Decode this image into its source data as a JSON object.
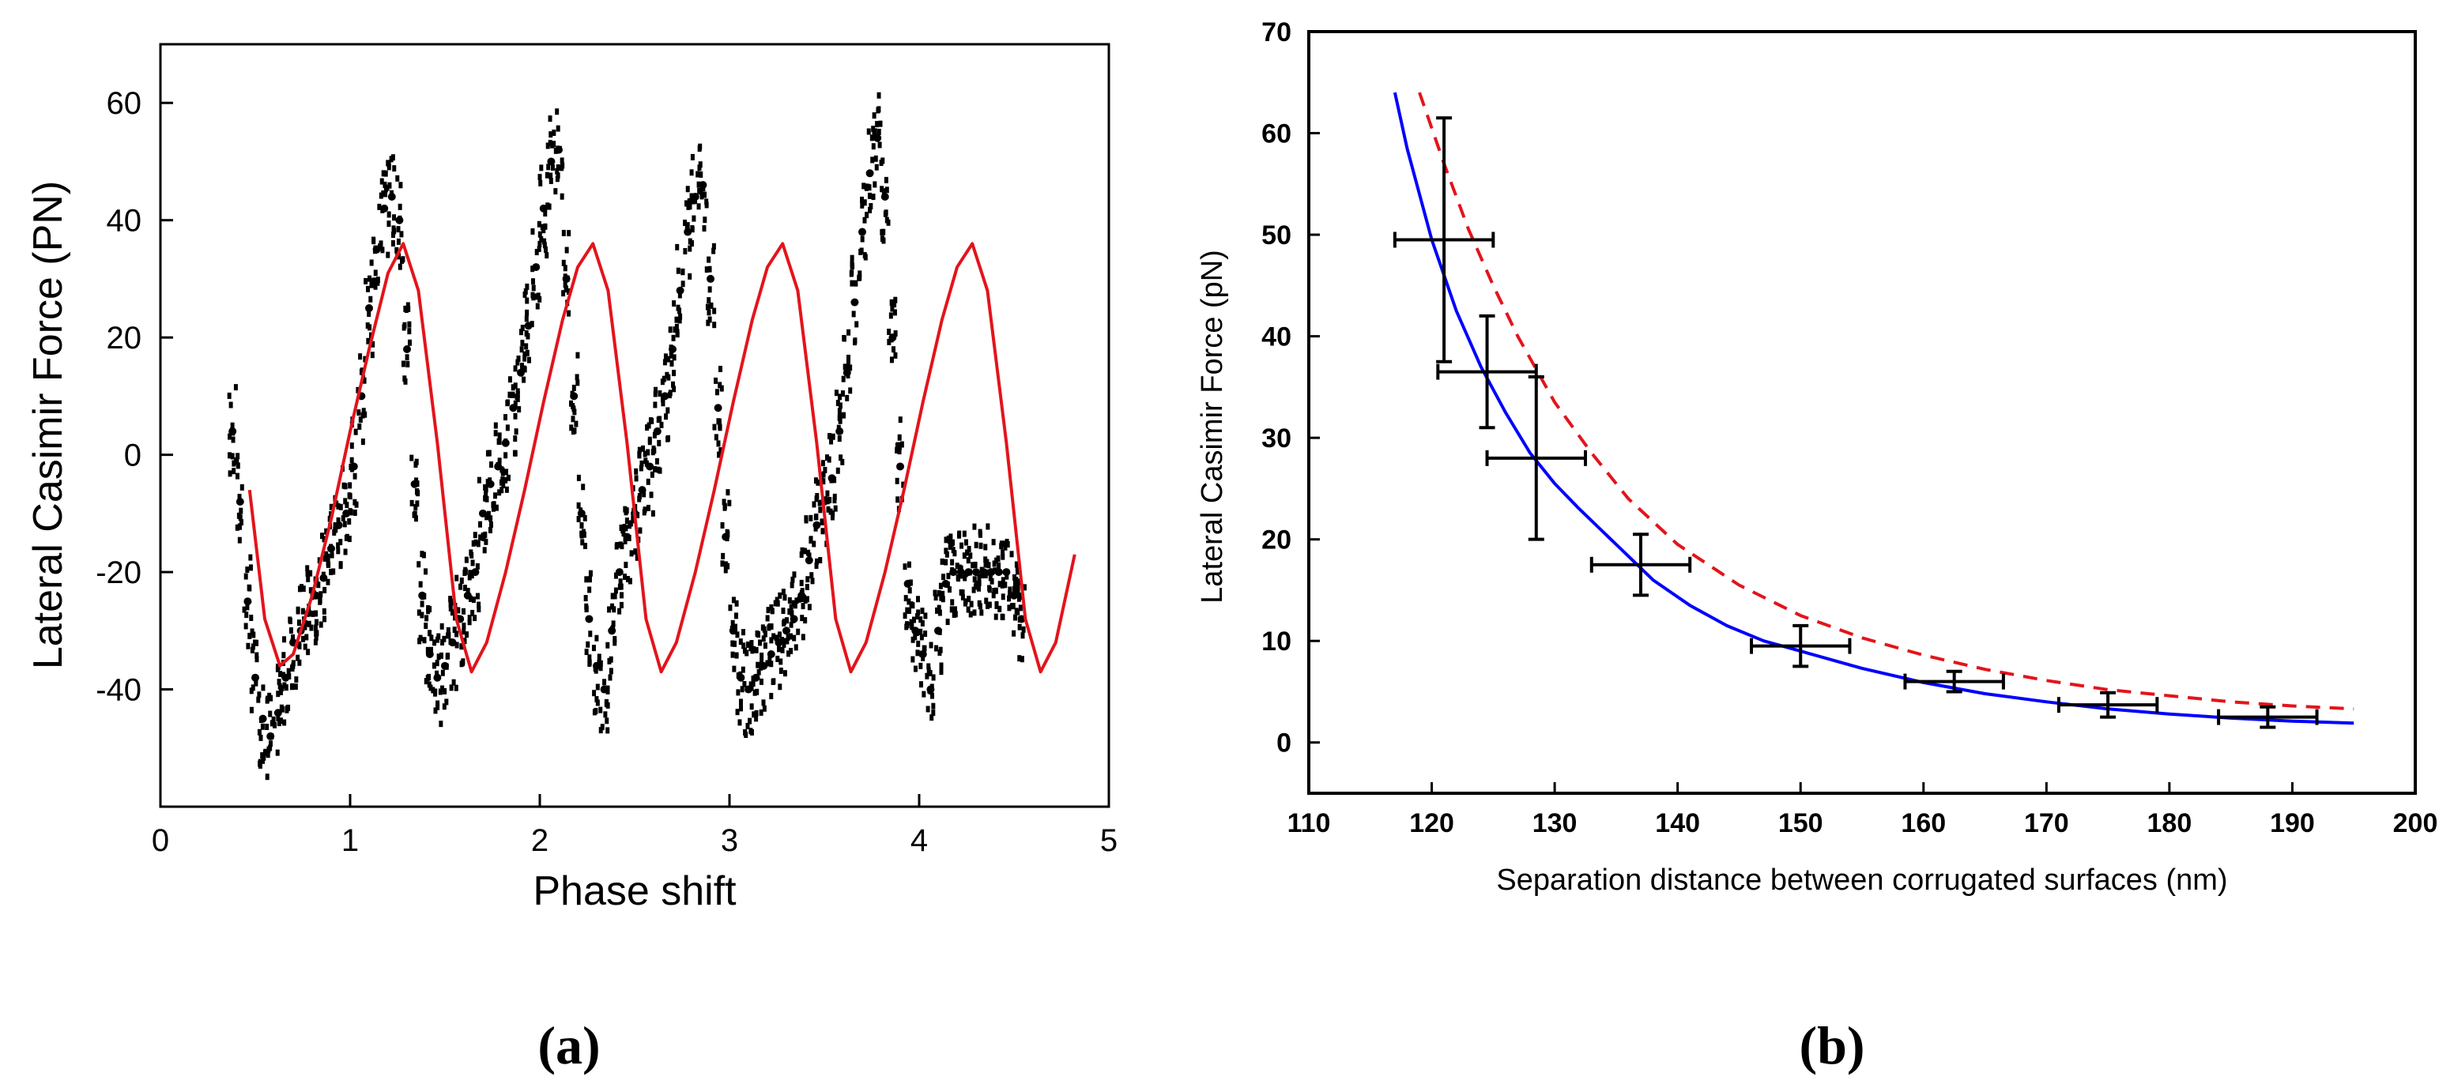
{
  "chart_data": [
    {
      "panel_label": "(a)",
      "type": "scatter",
      "xlabel": "Phase shift",
      "ylabel": "Lateral Casimir Force (PN)",
      "xlim": [
        0,
        5
      ],
      "ylim": [
        -60,
        70
      ],
      "xticks": [
        0,
        1,
        2,
        3,
        4,
        5
      ],
      "yticks": [
        -40,
        -20,
        0,
        20,
        40,
        60
      ],
      "legend": "none",
      "grid": false,
      "series": [
        {
          "kind": "scatter",
          "color": "#000000",
          "x": [
            0.38,
            0.42,
            0.46,
            0.5,
            0.54,
            0.58,
            0.62,
            0.66,
            0.7,
            0.74,
            0.78,
            0.82,
            0.86,
            0.9,
            0.94,
            0.98,
            1.02,
            1.06,
            1.1,
            1.14,
            1.18,
            1.22,
            1.26,
            1.3,
            1.34,
            1.38,
            1.42,
            1.46,
            1.5,
            1.54,
            1.58,
            1.62,
            1.66,
            1.7,
            1.74,
            1.78,
            1.82,
            1.86,
            1.9,
            1.94,
            1.98,
            2.02,
            2.06,
            2.1,
            2.14,
            2.18,
            2.22,
            2.26,
            2.3,
            2.34,
            2.38,
            2.42,
            2.46,
            2.5,
            2.54,
            2.58,
            2.62,
            2.66,
            2.7,
            2.74,
            2.78,
            2.82,
            2.86,
            2.9,
            2.94,
            2.98,
            3.02,
            3.06,
            3.1,
            3.14,
            3.18,
            3.22,
            3.26,
            3.3,
            3.34,
            3.38,
            3.42,
            3.46,
            3.5,
            3.54,
            3.58,
            3.62,
            3.66,
            3.7,
            3.74,
            3.78,
            3.82,
            3.86,
            3.9,
            3.94,
            3.98,
            4.02,
            4.06,
            4.1,
            4.14,
            4.18,
            4.22,
            4.26,
            4.3,
            4.34,
            4.38,
            4.42,
            4.46,
            4.5,
            4.54
          ],
          "y": [
            4,
            -8,
            -25,
            -38,
            -45,
            -48,
            -44,
            -38,
            -32,
            -30,
            -27,
            -24,
            -21,
            -16,
            -12,
            -10,
            -2,
            10,
            25,
            35,
            42,
            44,
            40,
            18,
            -5,
            -24,
            -34,
            -38,
            -36,
            -32,
            -28,
            -24,
            -20,
            -10,
            -5,
            -2,
            2,
            8,
            14,
            22,
            32,
            42,
            50,
            52,
            30,
            10,
            -10,
            -28,
            -36,
            -40,
            -30,
            -20,
            -14,
            -10,
            -6,
            -2,
            4,
            10,
            18,
            28,
            38,
            44,
            46,
            30,
            8,
            -14,
            -30,
            -38,
            -40,
            -38,
            -36,
            -34,
            -32,
            -30,
            -28,
            -24,
            -18,
            -12,
            -8,
            -4,
            4,
            14,
            26,
            38,
            48,
            54,
            44,
            20,
            -2,
            -22,
            -30,
            -34,
            -40,
            -30,
            -22,
            -20,
            -20,
            -20,
            -20,
            -20,
            -20,
            -20,
            -20,
            -24,
            -28
          ]
        },
        {
          "kind": "line",
          "color": "#e3141b",
          "x": [
            0.47,
            0.55,
            0.63,
            0.7,
            0.8,
            0.9,
            1.0,
            1.1,
            1.2,
            1.28,
            1.36,
            1.46,
            1.56,
            1.64,
            1.72,
            1.82,
            1.92,
            2.02,
            2.12,
            2.2,
            2.28,
            2.36,
            2.46,
            2.56,
            2.64,
            2.72,
            2.82,
            2.92,
            3.02,
            3.12,
            3.2,
            3.28,
            3.36,
            3.46,
            3.56,
            3.64,
            3.72,
            3.82,
            3.92,
            4.02,
            4.12,
            4.2,
            4.28,
            4.36,
            4.46,
            4.56,
            4.64,
            4.72,
            4.82
          ],
          "y": [
            -6,
            -28,
            -36,
            -34,
            -24,
            -11,
            4,
            18,
            31,
            36,
            28,
            2,
            -28,
            -37,
            -32,
            -20,
            -6,
            9,
            23,
            32,
            36,
            28,
            2,
            -28,
            -37,
            -32,
            -20,
            -6,
            9,
            23,
            32,
            36,
            28,
            2,
            -28,
            -37,
            -32,
            -20,
            -6,
            9,
            23,
            32,
            36,
            28,
            2,
            -28,
            -37,
            -32,
            -17
          ]
        }
      ]
    },
    {
      "panel_label": "(b)",
      "type": "line",
      "xlabel": "Separation distance between corrugated surfaces (nm)",
      "ylabel": "Lateral Casimir Force (pN)",
      "xlim": [
        110,
        200
      ],
      "ylim": [
        -5,
        70
      ],
      "xticks": [
        110,
        120,
        130,
        140,
        150,
        160,
        170,
        180,
        190,
        200
      ],
      "yticks": [
        0,
        10,
        20,
        30,
        40,
        50,
        60,
        70
      ],
      "legend": "none",
      "grid": false,
      "series": [
        {
          "kind": "line",
          "color": "#0000ff",
          "style": "solid",
          "x": [
            117,
            118,
            120,
            122,
            124,
            126,
            128,
            130,
            132,
            135,
            138,
            141,
            144,
            147,
            150,
            155,
            160,
            165,
            170,
            175,
            180,
            185,
            190,
            195
          ],
          "y": [
            64,
            58.5,
            49.5,
            42.5,
            37,
            32.5,
            28.5,
            25.5,
            23,
            19.5,
            16,
            13.5,
            11.5,
            10,
            9,
            7.3,
            5.9,
            4.8,
            4,
            3.3,
            2.8,
            2.4,
            2.1,
            1.9
          ]
        },
        {
          "kind": "line",
          "color": "#e3141b",
          "style": "dashed",
          "x": [
            119,
            121,
            123,
            125,
            127,
            130,
            133,
            136,
            140,
            145,
            150,
            155,
            160,
            165,
            170,
            175,
            180,
            185,
            190,
            195
          ],
          "y": [
            64,
            57,
            50.5,
            45,
            40,
            33.5,
            28.5,
            24,
            19.5,
            15.5,
            12.5,
            10.3,
            8.6,
            7.2,
            6.1,
            5.2,
            4.6,
            4,
            3.6,
            3.3
          ]
        },
        {
          "kind": "errorbar",
          "color": "#000000",
          "points": [
            {
              "x": 121,
              "y": 49.5,
              "xerr": 4,
              "yerr": 12
            },
            {
              "x": 124.5,
              "y": 36.5,
              "xerr": 4,
              "yerr": 5.5
            },
            {
              "x": 128.5,
              "y": 28,
              "xerr": 4,
              "yerr": 8
            },
            {
              "x": 137,
              "y": 17.5,
              "xerr": 4,
              "yerr": 3
            },
            {
              "x": 150,
              "y": 9.5,
              "xerr": 4,
              "yerr": 2
            },
            {
              "x": 162.5,
              "y": 6,
              "xerr": 4,
              "yerr": 1
            },
            {
              "x": 175,
              "y": 3.7,
              "xerr": 4,
              "yerr": 1.2
            },
            {
              "x": 188,
              "y": 2.5,
              "xerr": 4,
              "yerr": 1
            }
          ]
        }
      ]
    }
  ]
}
